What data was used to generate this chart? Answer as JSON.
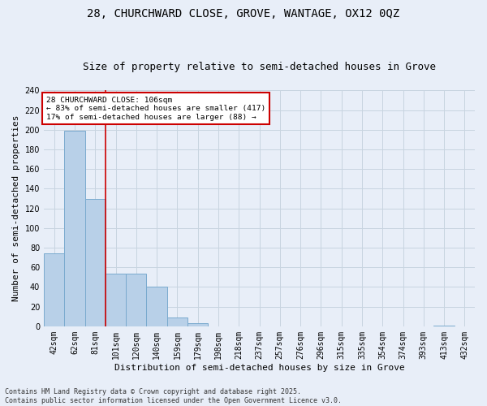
{
  "title": "28, CHURCHWARD CLOSE, GROVE, WANTAGE, OX12 0QZ",
  "subtitle": "Size of property relative to semi-detached houses in Grove",
  "xlabel": "Distribution of semi-detached houses by size in Grove",
  "ylabel": "Number of semi-detached properties",
  "bins": [
    "42sqm",
    "62sqm",
    "81sqm",
    "101sqm",
    "120sqm",
    "140sqm",
    "159sqm",
    "179sqm",
    "198sqm",
    "218sqm",
    "237sqm",
    "257sqm",
    "276sqm",
    "296sqm",
    "315sqm",
    "335sqm",
    "354sqm",
    "374sqm",
    "393sqm",
    "413sqm",
    "432sqm"
  ],
  "values": [
    74,
    199,
    130,
    54,
    54,
    40,
    9,
    3,
    0,
    0,
    0,
    0,
    0,
    0,
    0,
    0,
    0,
    0,
    0,
    1,
    0
  ],
  "bar_color": "#b8d0e8",
  "bar_edge_color": "#7aaace",
  "grid_color": "#c8d4e0",
  "property_line_color": "#cc0000",
  "annotation_box_color": "#ffffff",
  "annotation_box_edge": "#cc0000",
  "bg_color": "#e8eef8",
  "ylim": [
    0,
    240
  ],
  "yticks": [
    0,
    20,
    40,
    60,
    80,
    100,
    120,
    140,
    160,
    180,
    200,
    220,
    240
  ],
  "footer1": "Contains HM Land Registry data © Crown copyright and database right 2025.",
  "footer2": "Contains public sector information licensed under the Open Government Licence v3.0.",
  "title_fontsize": 10,
  "subtitle_fontsize": 9,
  "axis_fontsize": 8,
  "tick_fontsize": 7,
  "footer_fontsize": 6
}
